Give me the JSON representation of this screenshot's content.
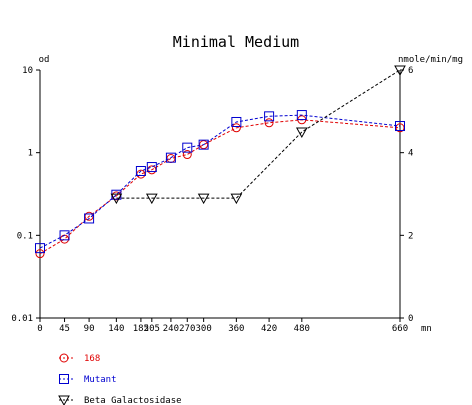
{
  "chart_data": {
    "type": "line",
    "title": "Minimal Medium",
    "left_axis": {
      "label": "od",
      "scale": "log",
      "range": [
        0.01,
        10
      ],
      "ticks": [
        {
          "v": 10,
          "label": "10"
        },
        {
          "v": 1,
          "label": "1"
        },
        {
          "v": 0.1,
          "label": "0.1"
        },
        {
          "v": 0.01,
          "label": "0.01"
        }
      ]
    },
    "right_axis": {
      "label": "nmole/min/mg",
      "scale": "linear",
      "range": [
        0,
        6
      ],
      "ticks": [
        {
          "v": 6,
          "label": "6"
        },
        {
          "v": 4,
          "label": "4"
        },
        {
          "v": 2,
          "label": "2"
        },
        {
          "v": 0,
          "label": "0"
        }
      ]
    },
    "x_axis": {
      "unit": "mn",
      "range": [
        0,
        660
      ],
      "ticks": [
        {
          "v": 0,
          "label": "0"
        },
        {
          "v": 45,
          "label": "45"
        },
        {
          "v": 90,
          "label": "90"
        },
        {
          "v": 140,
          "label": "140"
        },
        {
          "v": 185,
          "label": "185"
        },
        {
          "v": 205,
          "label": "205"
        },
        {
          "v": 240,
          "label": "240"
        },
        {
          "v": 270,
          "label": "270"
        },
        {
          "v": 300,
          "label": "300"
        },
        {
          "v": 360,
          "label": "360"
        },
        {
          "v": 420,
          "label": "420"
        },
        {
          "v": 480,
          "label": "480"
        },
        {
          "v": 660,
          "label": "660"
        }
      ]
    },
    "series": [
      {
        "name": "168",
        "axis": "left",
        "marker": "circle",
        "color": "#e00000",
        "x": [
          0,
          45,
          90,
          140,
          185,
          205,
          240,
          270,
          300,
          360,
          420,
          480,
          660
        ],
        "y": [
          0.06,
          0.09,
          0.17,
          0.3,
          0.55,
          0.62,
          0.85,
          0.95,
          1.25,
          2.0,
          2.3,
          2.5,
          2.0
        ]
      },
      {
        "name": "Mutant",
        "axis": "left",
        "marker": "square",
        "color": "#0000d0",
        "x": [
          0,
          45,
          90,
          140,
          185,
          205,
          240,
          270,
          300,
          360,
          420,
          480,
          660
        ],
        "y": [
          0.07,
          0.1,
          0.16,
          0.31,
          0.6,
          0.67,
          0.87,
          1.15,
          1.25,
          2.35,
          2.75,
          2.85,
          2.1
        ]
      },
      {
        "name": "Beta Galactosidase",
        "axis": "right",
        "marker": "triangle-down",
        "color": "#000000",
        "x": [
          140,
          205,
          300,
          360,
          480,
          660
        ],
        "y": [
          2.9,
          2.9,
          2.9,
          2.9,
          4.5,
          6.0
        ]
      }
    ]
  }
}
